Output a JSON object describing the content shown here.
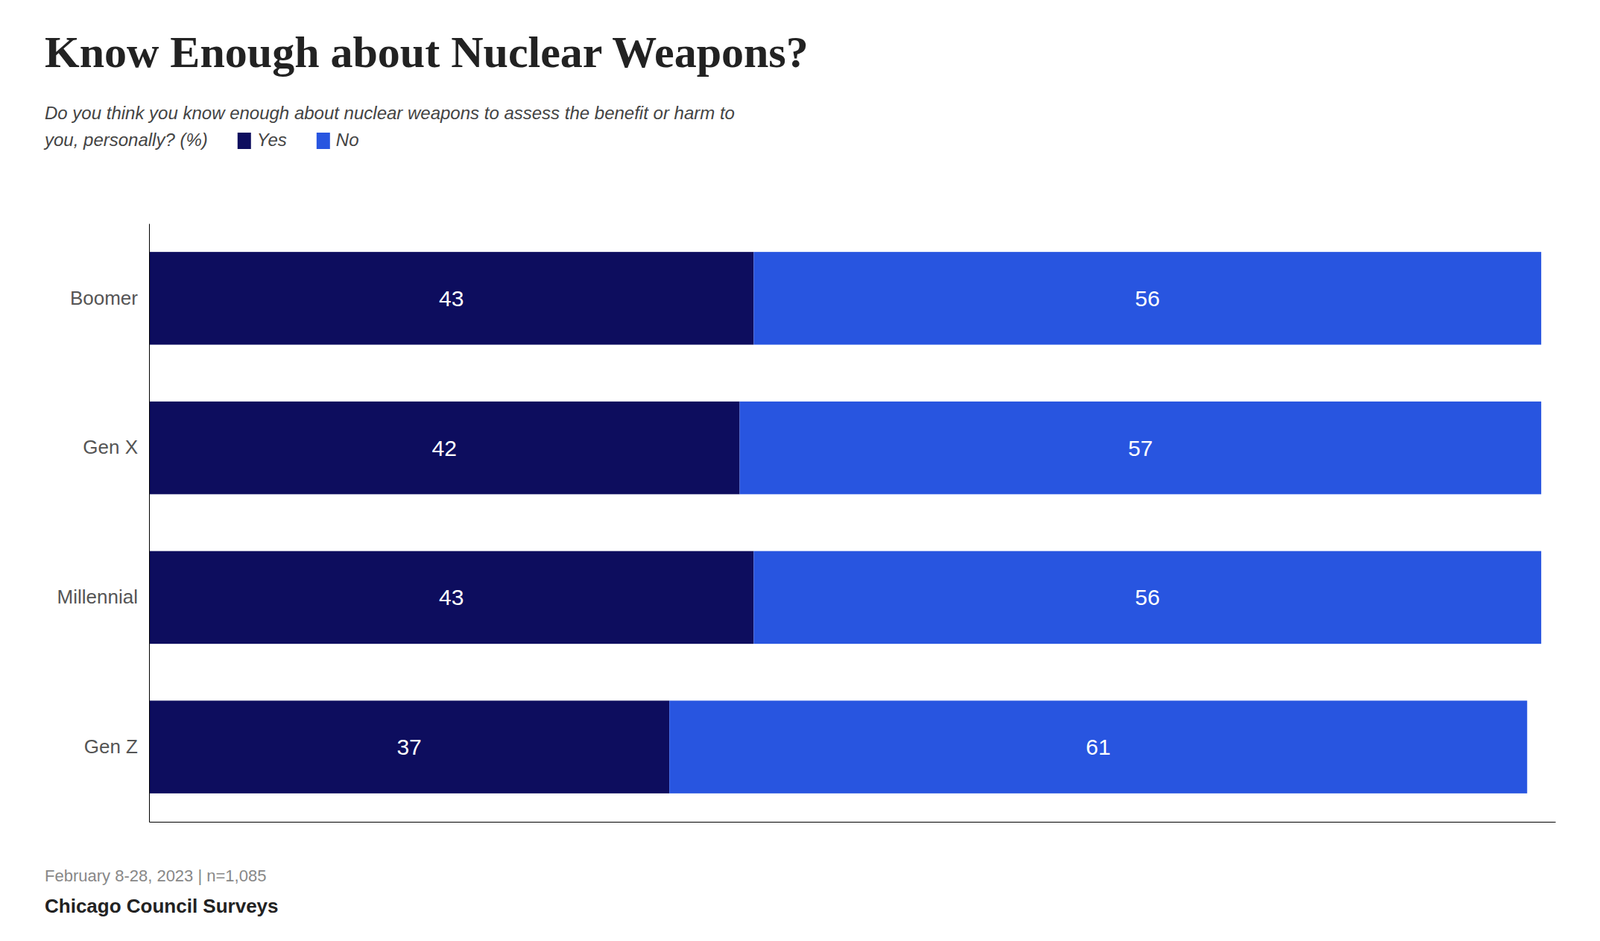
{
  "chart_data": {
    "type": "bar",
    "orientation": "horizontal",
    "stacked": true,
    "title": "Know Enough about Nuclear Weapons?",
    "subtitle": [
      "Do you think you know enough about nuclear weapons to assess the benefit or harm to",
      "you, personally? (%)"
    ],
    "annotations": [
      "February 8-28, 2023 | n=1,085",
      "Chicago Council Surveys"
    ],
    "categories": [
      "Boomer",
      "Gen X",
      "Millennial",
      "Gen Z"
    ],
    "series": [
      {
        "name": "Yes",
        "color": "#0d0d5e",
        "values": [
          43,
          42,
          43,
          37
        ]
      },
      {
        "name": "No",
        "color": "#2855e0",
        "values": [
          56,
          57,
          56,
          61
        ]
      }
    ],
    "xlim": [
      0,
      100
    ],
    "data_labels": true,
    "tick_labels": "y",
    "grid": false,
    "legend": "top-left"
  }
}
